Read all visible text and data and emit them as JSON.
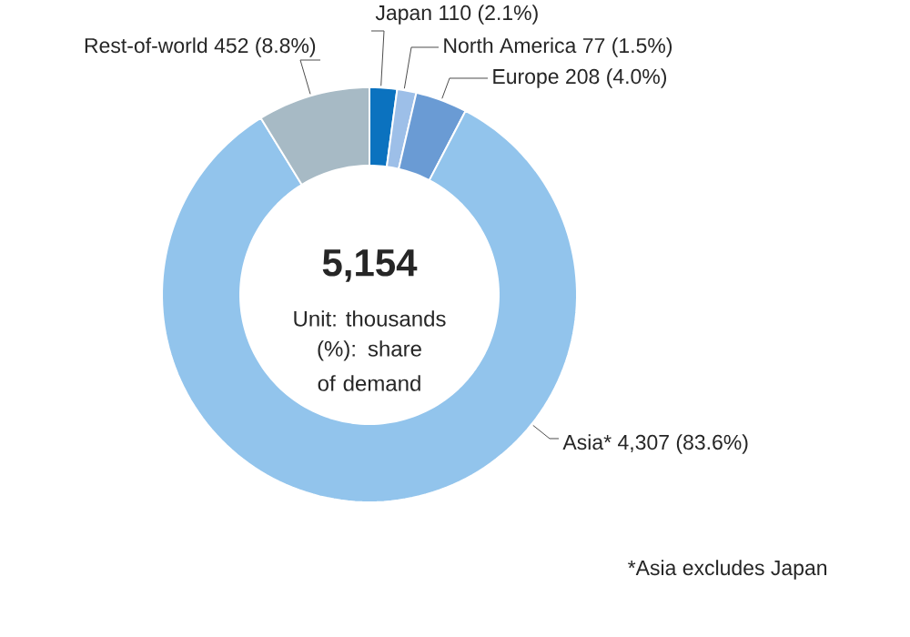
{
  "chart_data": {
    "type": "donut",
    "categories": [
      "Japan",
      "North America",
      "Europe",
      "Asia*",
      "Rest-of-world"
    ],
    "values": [
      110,
      77,
      208,
      4307,
      452
    ],
    "value_labels": [
      "110 (2.1%)",
      "77 (1.5%)",
      "208 (4.0%)",
      "4,307 (83.6%)",
      "452 (8.8%)"
    ],
    "colors": [
      "#0b72bf",
      "#9dbfe8",
      "#6a9bd4",
      "#92c4ec",
      "#a7bac5"
    ],
    "annotations": [
      "5,154",
      "Unit: thousands",
      "(%): share of demand",
      "*Asia excludes Japan"
    ]
  }
}
